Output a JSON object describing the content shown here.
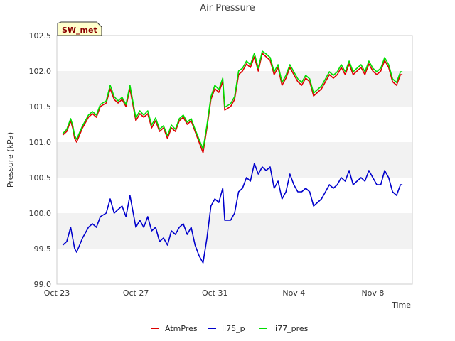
{
  "chart_data": {
    "type": "line",
    "title": "Air Pressure",
    "xlabel": "Time",
    "ylabel": "Pressure (kPa)",
    "ylim": [
      99.0,
      102.5
    ],
    "yticks": [
      99.0,
      99.5,
      100.0,
      100.5,
      101.0,
      101.5,
      102.0,
      102.5
    ],
    "ytick_labels": [
      "99.0",
      "99.5",
      "100.0",
      "100.5",
      "101.0",
      "101.5",
      "102.0",
      "102.5"
    ],
    "xlim": [
      0,
      18
    ],
    "xticks": [
      0,
      4,
      8,
      12,
      16
    ],
    "xtick_labels": [
      "Oct 23",
      "Oct 27",
      "Oct 31",
      "Nov 4",
      "Nov 8"
    ],
    "x_units": "days since Oct 23",
    "grid": "alternating horizontal bands",
    "legend_position": "bottom-center",
    "station_tag": "SW_met",
    "colors": {
      "AtmPres": "#dd0000",
      "li75_p": "#0000cc",
      "li77_pres": "#00dd00"
    },
    "series": [
      {
        "name": "AtmPres",
        "x": [
          0.3,
          0.5,
          0.7,
          0.8,
          0.9,
          1.0,
          1.3,
          1.5,
          1.6,
          1.8,
          2.0,
          2.2,
          2.5,
          2.7,
          2.9,
          3.1,
          3.3,
          3.5,
          3.7,
          4.0,
          4.2,
          4.4,
          4.6,
          4.8,
          5.0,
          5.2,
          5.4,
          5.6,
          5.8,
          6.0,
          6.2,
          6.4,
          6.6,
          6.8,
          7.0,
          7.2,
          7.4,
          7.6,
          7.8,
          8.0,
          8.2,
          8.4,
          8.5,
          8.8,
          9.0,
          9.2,
          9.4,
          9.6,
          9.8,
          10.0,
          10.2,
          10.4,
          10.6,
          10.8,
          11.0,
          11.2,
          11.4,
          11.6,
          11.8,
          12.0,
          12.2,
          12.4,
          12.6,
          12.8,
          13.0,
          13.2,
          13.4,
          13.6,
          13.8,
          14.0,
          14.2,
          14.4,
          14.6,
          14.8,
          15.0,
          15.2,
          15.4,
          15.6,
          15.8,
          16.0,
          16.2,
          16.4,
          16.6,
          16.8,
          17.0,
          17.2,
          17.4,
          17.5
        ],
        "y": [
          101.1,
          101.15,
          101.3,
          101.2,
          101.05,
          101.0,
          101.2,
          101.3,
          101.35,
          101.4,
          101.35,
          101.5,
          101.55,
          101.75,
          101.6,
          101.55,
          101.6,
          101.5,
          101.75,
          101.3,
          101.4,
          101.35,
          101.4,
          101.2,
          101.3,
          101.15,
          101.2,
          101.05,
          101.2,
          101.15,
          101.3,
          101.35,
          101.25,
          101.3,
          101.15,
          101.0,
          100.85,
          101.2,
          101.6,
          101.75,
          101.7,
          101.85,
          101.45,
          101.5,
          101.6,
          101.95,
          102.0,
          102.1,
          102.05,
          102.2,
          102.0,
          102.25,
          102.2,
          102.15,
          101.95,
          102.05,
          101.8,
          101.9,
          102.05,
          101.95,
          101.85,
          101.8,
          101.9,
          101.85,
          101.65,
          101.7,
          101.75,
          101.85,
          101.95,
          101.9,
          101.95,
          102.05,
          101.95,
          102.1,
          101.95,
          102.0,
          102.05,
          101.95,
          102.1,
          102.0,
          101.95,
          102.0,
          102.15,
          102.05,
          101.85,
          101.8,
          101.95,
          101.95
        ]
      },
      {
        "name": "li75_p",
        "x": [
          0.3,
          0.5,
          0.7,
          0.8,
          0.9,
          1.0,
          1.3,
          1.5,
          1.6,
          1.8,
          2.0,
          2.2,
          2.5,
          2.7,
          2.9,
          3.1,
          3.3,
          3.5,
          3.7,
          4.0,
          4.2,
          4.4,
          4.6,
          4.8,
          5.0,
          5.2,
          5.4,
          5.6,
          5.8,
          6.0,
          6.2,
          6.4,
          6.6,
          6.8,
          7.0,
          7.2,
          7.4,
          7.6,
          7.8,
          8.0,
          8.2,
          8.4,
          8.5,
          8.8,
          9.0,
          9.2,
          9.4,
          9.6,
          9.8,
          10.0,
          10.2,
          10.4,
          10.6,
          10.8,
          11.0,
          11.2,
          11.4,
          11.6,
          11.8,
          12.0,
          12.2,
          12.4,
          12.6,
          12.8,
          13.0,
          13.2,
          13.4,
          13.6,
          13.8,
          14.0,
          14.2,
          14.4,
          14.6,
          14.8,
          15.0,
          15.2,
          15.4,
          15.6,
          15.8,
          16.0,
          16.2,
          16.4,
          16.6,
          16.8,
          17.0,
          17.2,
          17.4,
          17.5
        ],
        "y": [
          99.55,
          99.6,
          99.8,
          99.65,
          99.5,
          99.45,
          99.65,
          99.75,
          99.8,
          99.85,
          99.8,
          99.95,
          100.0,
          100.2,
          100.0,
          100.05,
          100.1,
          99.95,
          100.25,
          99.8,
          99.9,
          99.8,
          99.95,
          99.75,
          99.8,
          99.6,
          99.65,
          99.55,
          99.75,
          99.7,
          99.8,
          99.85,
          99.7,
          99.8,
          99.55,
          99.4,
          99.3,
          99.65,
          100.1,
          100.2,
          100.15,
          100.35,
          99.9,
          99.9,
          100.0,
          100.3,
          100.35,
          100.5,
          100.45,
          100.7,
          100.55,
          100.65,
          100.6,
          100.65,
          100.35,
          100.45,
          100.2,
          100.3,
          100.55,
          100.4,
          100.3,
          100.3,
          100.35,
          100.3,
          100.1,
          100.15,
          100.2,
          100.3,
          100.4,
          100.35,
          100.4,
          100.5,
          100.45,
          100.6,
          100.4,
          100.45,
          100.5,
          100.45,
          100.6,
          100.5,
          100.4,
          100.4,
          100.6,
          100.5,
          100.3,
          100.25,
          100.4,
          100.4
        ]
      },
      {
        "name": "li77_pres",
        "x": [
          0.3,
          0.5,
          0.7,
          0.8,
          0.9,
          1.0,
          1.3,
          1.5,
          1.6,
          1.8,
          2.0,
          2.2,
          2.5,
          2.7,
          2.9,
          3.1,
          3.3,
          3.5,
          3.7,
          4.0,
          4.2,
          4.4,
          4.6,
          4.8,
          5.0,
          5.2,
          5.4,
          5.6,
          5.8,
          6.0,
          6.2,
          6.4,
          6.6,
          6.8,
          7.0,
          7.2,
          7.4,
          7.6,
          7.8,
          8.0,
          8.2,
          8.4,
          8.5,
          8.8,
          9.0,
          9.2,
          9.4,
          9.6,
          9.8,
          10.0,
          10.2,
          10.4,
          10.6,
          10.8,
          11.0,
          11.2,
          11.4,
          11.6,
          11.8,
          12.0,
          12.2,
          12.4,
          12.6,
          12.8,
          13.0,
          13.2,
          13.4,
          13.6,
          13.8,
          14.0,
          14.2,
          14.4,
          14.6,
          14.8,
          15.0,
          15.2,
          15.4,
          15.6,
          15.8,
          16.0,
          16.2,
          16.4,
          16.6,
          16.8,
          17.0,
          17.2,
          17.4,
          17.5
        ],
        "y": [
          101.12,
          101.18,
          101.33,
          101.24,
          101.09,
          101.04,
          101.23,
          101.33,
          101.38,
          101.43,
          101.38,
          101.53,
          101.58,
          101.8,
          101.64,
          101.58,
          101.63,
          101.53,
          101.8,
          101.34,
          101.44,
          101.38,
          101.44,
          101.24,
          101.34,
          101.18,
          101.23,
          101.09,
          101.24,
          101.18,
          101.33,
          101.38,
          101.28,
          101.33,
          101.18,
          101.04,
          100.9,
          101.24,
          101.64,
          101.8,
          101.74,
          101.9,
          101.49,
          101.54,
          101.64,
          102.0,
          102.04,
          102.14,
          102.09,
          102.25,
          102.04,
          102.28,
          102.24,
          102.19,
          101.99,
          102.09,
          101.84,
          101.94,
          102.09,
          101.99,
          101.89,
          101.84,
          101.94,
          101.89,
          101.69,
          101.74,
          101.79,
          101.89,
          101.99,
          101.94,
          101.99,
          102.09,
          101.99,
          102.14,
          101.99,
          102.04,
          102.09,
          101.99,
          102.14,
          102.04,
          101.99,
          102.04,
          102.19,
          102.09,
          101.89,
          101.84,
          101.99,
          101.99
        ]
      }
    ]
  }
}
